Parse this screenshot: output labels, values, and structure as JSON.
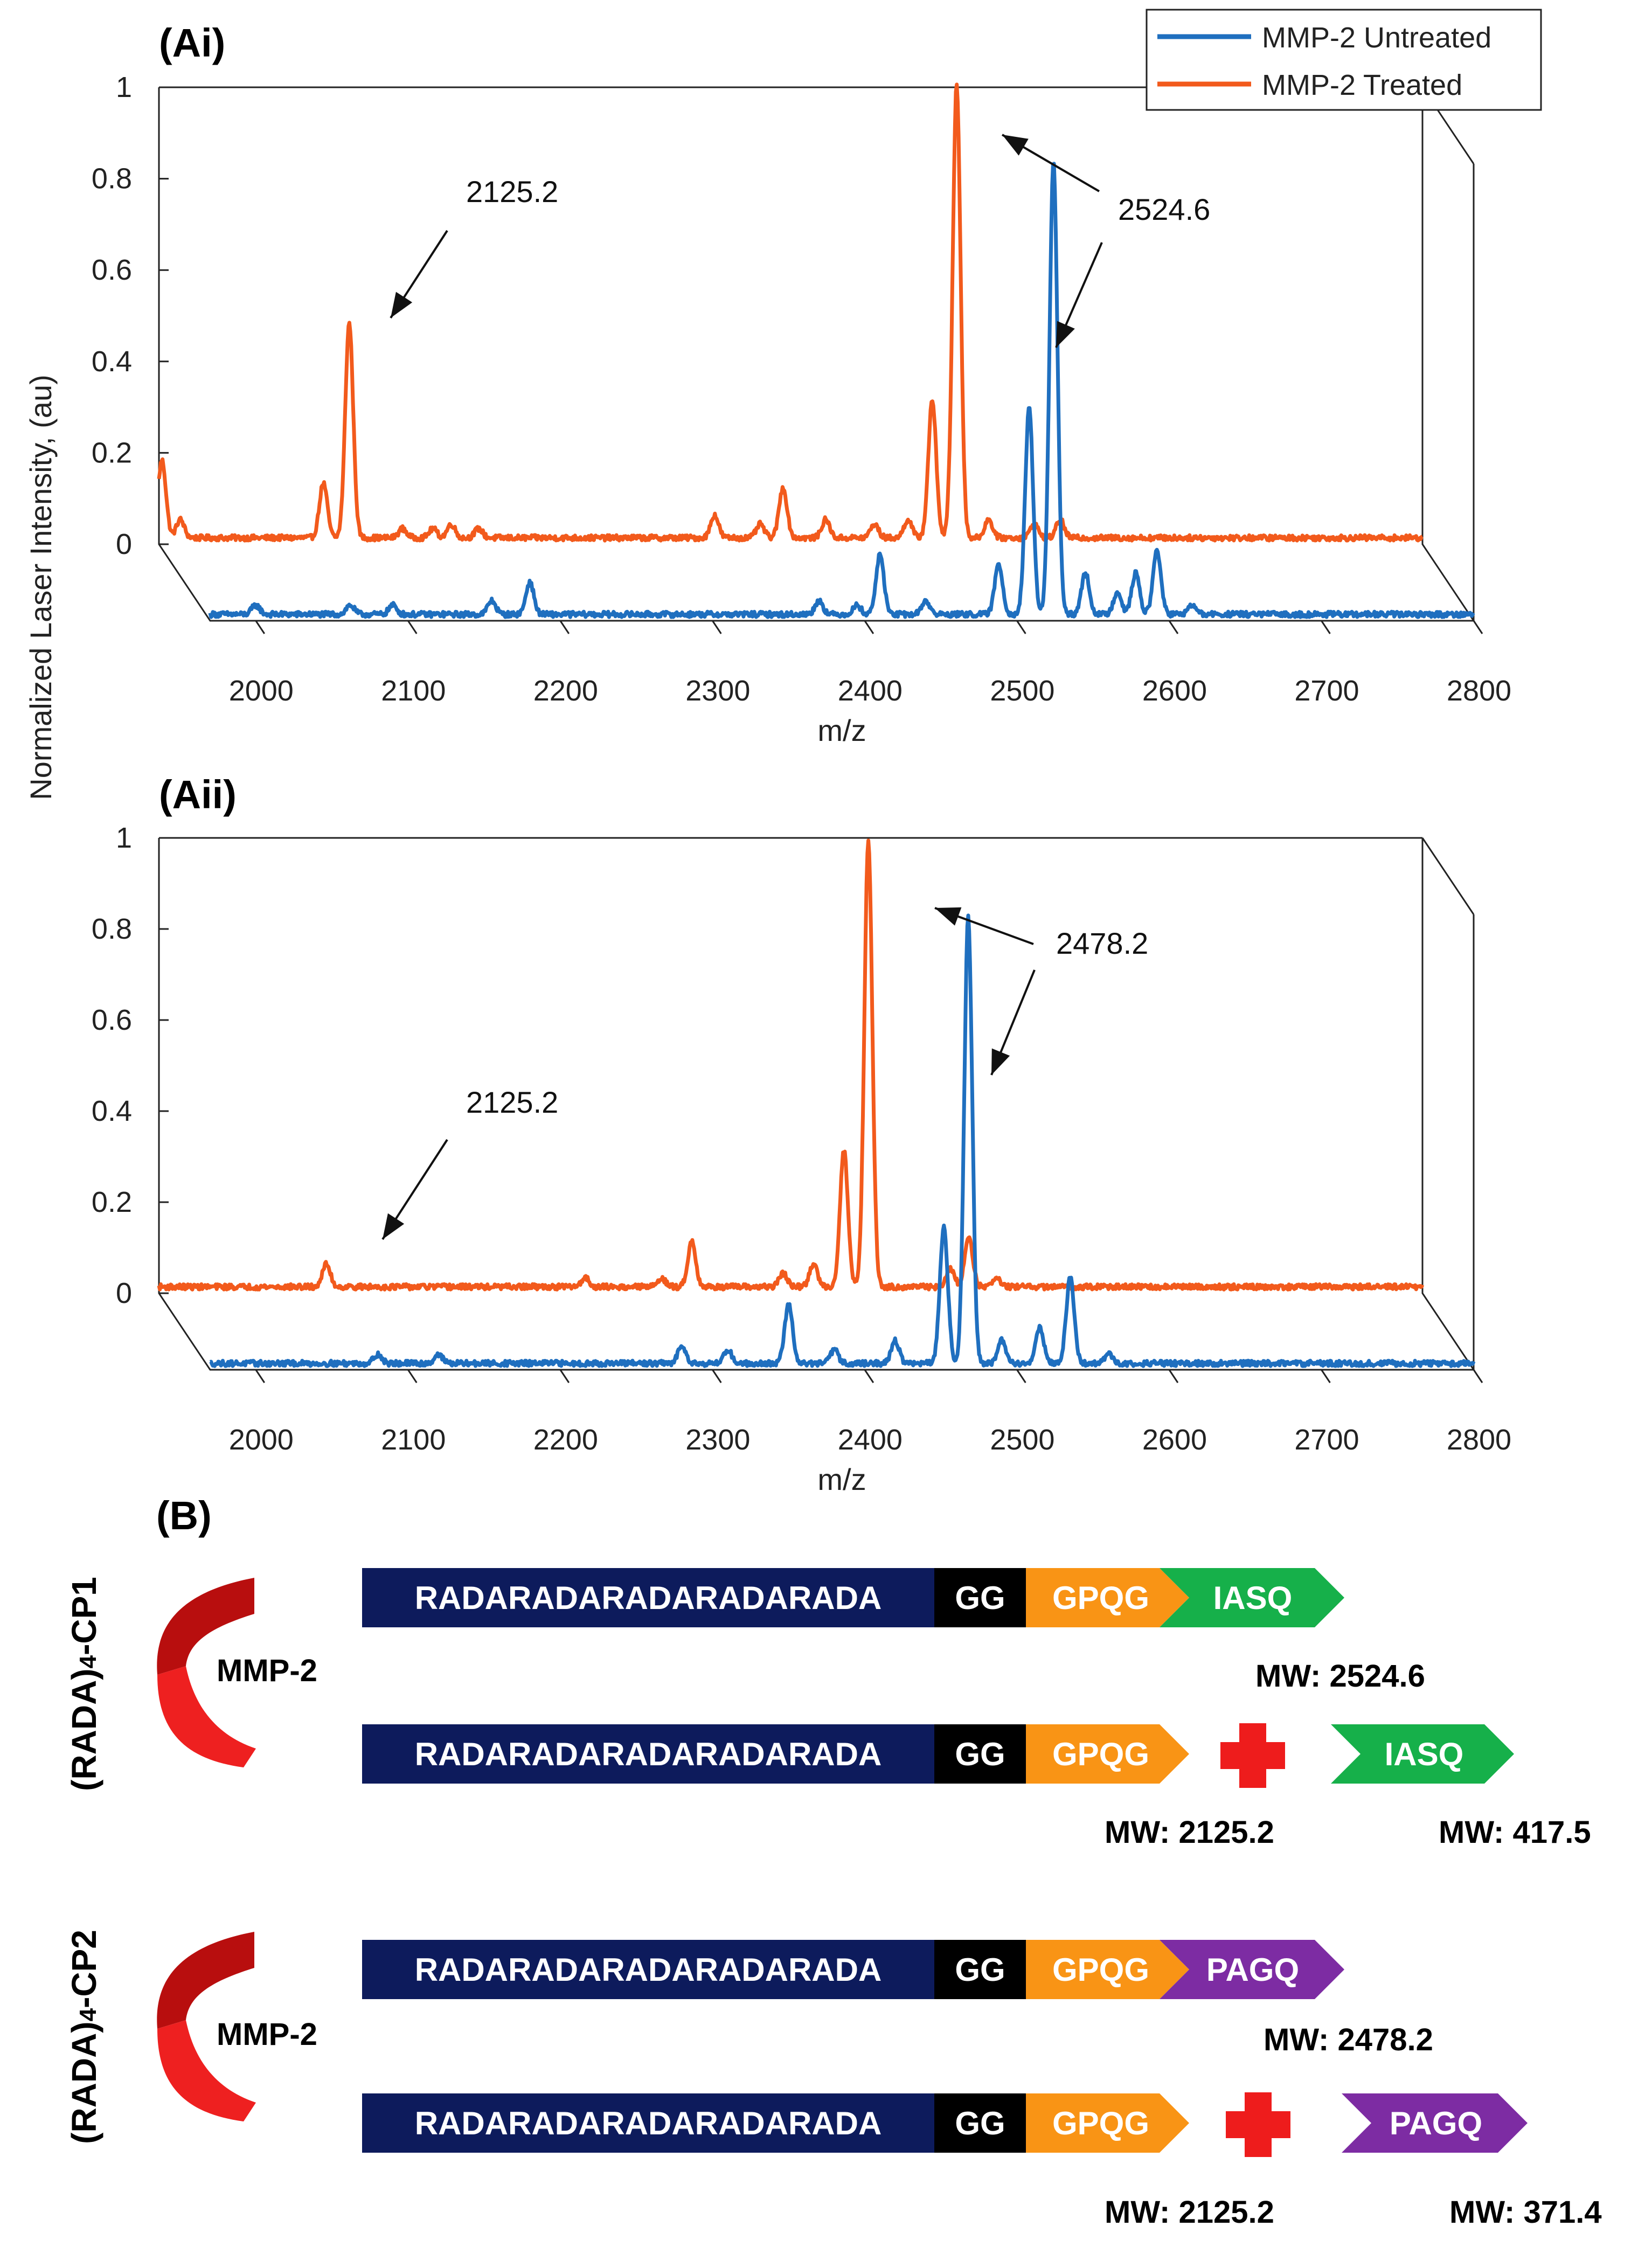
{
  "colors": {
    "untreated": "#1f6fbf",
    "treated": "#f25a1c",
    "navy": "#0d1b5c",
    "black": "#000000",
    "orange_seg": "#f99415",
    "green_seg": "#16b04a",
    "purple_seg": "#7d2ca3",
    "red_cross": "#ee1c1c",
    "scissor_dark": "#b80e0e",
    "scissor_light": "#ee2020"
  },
  "shared": {
    "ylabel": "Normalized Laser Intensity, (au)"
  },
  "chart_data": [
    {
      "type": "line",
      "panel_label": "(Ai)",
      "xlabel": "m/z",
      "xlim": [
        1970,
        2800
      ],
      "ylim": [
        0,
        1
      ],
      "xticks": [
        "2000",
        "2100",
        "2200",
        "2300",
        "2400",
        "2500",
        "2600",
        "2700",
        "2800"
      ],
      "yticks": [
        "0",
        "0.2",
        "0.4",
        "0.6",
        "0.8",
        "1"
      ],
      "legend": {
        "position": "top-right",
        "entries": [
          "MMP-2 Untreated",
          "MMP-2 Treated"
        ]
      },
      "series": [
        {
          "name": "MMP-2 Treated",
          "depth": "front",
          "color": "treated",
          "peaks": [
            [
              1972,
              0.17
            ],
            [
              1984,
              0.04
            ],
            [
              2078,
              0.12
            ],
            [
              2095,
              0.47
            ],
            [
              2130,
              0.02
            ],
            [
              2150,
              0.02
            ],
            [
              2162,
              0.03
            ],
            [
              2180,
              0.02
            ],
            [
              2335,
              0.05
            ],
            [
              2365,
              0.03
            ],
            [
              2380,
              0.11
            ],
            [
              2408,
              0.04
            ],
            [
              2440,
              0.03
            ],
            [
              2462,
              0.04
            ],
            [
              2478,
              0.3
            ],
            [
              2494,
              0.99
            ],
            [
              2515,
              0.04
            ],
            [
              2545,
              0.03
            ],
            [
              2562,
              0.04
            ]
          ]
        },
        {
          "name": "MMP-2 Untreated",
          "depth": "back",
          "color": "untreated",
          "peaks": [
            [
              2000,
              0.02
            ],
            [
              2062,
              0.02
            ],
            [
              2090,
              0.02
            ],
            [
              2155,
              0.03
            ],
            [
              2180,
              0.07
            ],
            [
              2370,
              0.03
            ],
            [
              2395,
              0.02
            ],
            [
              2410,
              0.13
            ],
            [
              2440,
              0.03
            ],
            [
              2488,
              0.11
            ],
            [
              2508,
              0.45
            ],
            [
              2524,
              0.99
            ],
            [
              2545,
              0.09
            ],
            [
              2566,
              0.05
            ],
            [
              2578,
              0.09
            ],
            [
              2592,
              0.14
            ],
            [
              2615,
              0.02
            ]
          ]
        }
      ],
      "annotations": [
        {
          "text": "2125.2",
          "target": "treated peak near 2095"
        },
        {
          "text": "2524.6",
          "target": "treated 2494 and untreated 2524 peaks"
        }
      ]
    },
    {
      "type": "line",
      "panel_label": "(Aii)",
      "xlabel": "m/z",
      "xlim": [
        1970,
        2800
      ],
      "ylim": [
        0,
        1
      ],
      "xticks": [
        "2000",
        "2100",
        "2200",
        "2300",
        "2400",
        "2500",
        "2600",
        "2700",
        "2800"
      ],
      "yticks": [
        "0",
        "0.2",
        "0.4",
        "0.6",
        "0.8",
        "1"
      ],
      "series": [
        {
          "name": "MMP-2 Treated",
          "depth": "front",
          "color": "treated",
          "peaks": [
            [
              2080,
              0.05
            ],
            [
              2250,
              0.02
            ],
            [
              2300,
              0.02
            ],
            [
              2320,
              0.1
            ],
            [
              2380,
              0.03
            ],
            [
              2400,
              0.05
            ],
            [
              2420,
              0.3
            ],
            [
              2436,
              0.98
            ],
            [
              2490,
              0.04
            ],
            [
              2502,
              0.11
            ],
            [
              2520,
              0.02
            ]
          ]
        },
        {
          "name": "MMP-2 Untreated",
          "depth": "back",
          "color": "untreated",
          "peaks": [
            [
              2080,
              0.02
            ],
            [
              2120,
              0.02
            ],
            [
              2280,
              0.04
            ],
            [
              2310,
              0.03
            ],
            [
              2350,
              0.13
            ],
            [
              2380,
              0.03
            ],
            [
              2420,
              0.05
            ],
            [
              2452,
              0.3
            ],
            [
              2468,
              0.98
            ],
            [
              2490,
              0.05
            ],
            [
              2515,
              0.08
            ],
            [
              2535,
              0.19
            ],
            [
              2560,
              0.02
            ]
          ]
        }
      ],
      "annotations": [
        {
          "text": "2125.2",
          "target": "small treated peak near 2080"
        },
        {
          "text": "2478.2",
          "target": "treated 2436 and untreated 2468 peaks"
        }
      ]
    }
  ],
  "panelB": {
    "label": "(B)",
    "groups": [
      {
        "side_label_pre": "(RADA)",
        "side_label_sub": "4",
        "side_label_post": "-CP1",
        "enzyme": "MMP-2",
        "full": {
          "segments": [
            "RADARADARADARADARADA",
            "GG",
            "GPQG",
            "IASQ"
          ],
          "mw": "MW: 2524.6"
        },
        "fragments": {
          "left_segments": [
            "RADARADARADARADARADA",
            "GG",
            "GPQG"
          ],
          "right_segment": "IASQ",
          "mw_left": "MW: 2125.2",
          "mw_right": "MW: 417.5"
        }
      },
      {
        "side_label_pre": "(RADA)",
        "side_label_sub": "4",
        "side_label_post": "-CP2",
        "enzyme": "MMP-2",
        "full": {
          "segments": [
            "RADARADARADARADARADA",
            "GG",
            "GPQG",
            "PAGQ"
          ],
          "mw": "MW: 2478.2"
        },
        "fragments": {
          "left_segments": [
            "RADARADARADARADARADA",
            "GG",
            "GPQG"
          ],
          "right_segment": "PAGQ",
          "mw_left": "MW: 2125.2",
          "mw_right": "MW: 371.4"
        }
      }
    ]
  }
}
